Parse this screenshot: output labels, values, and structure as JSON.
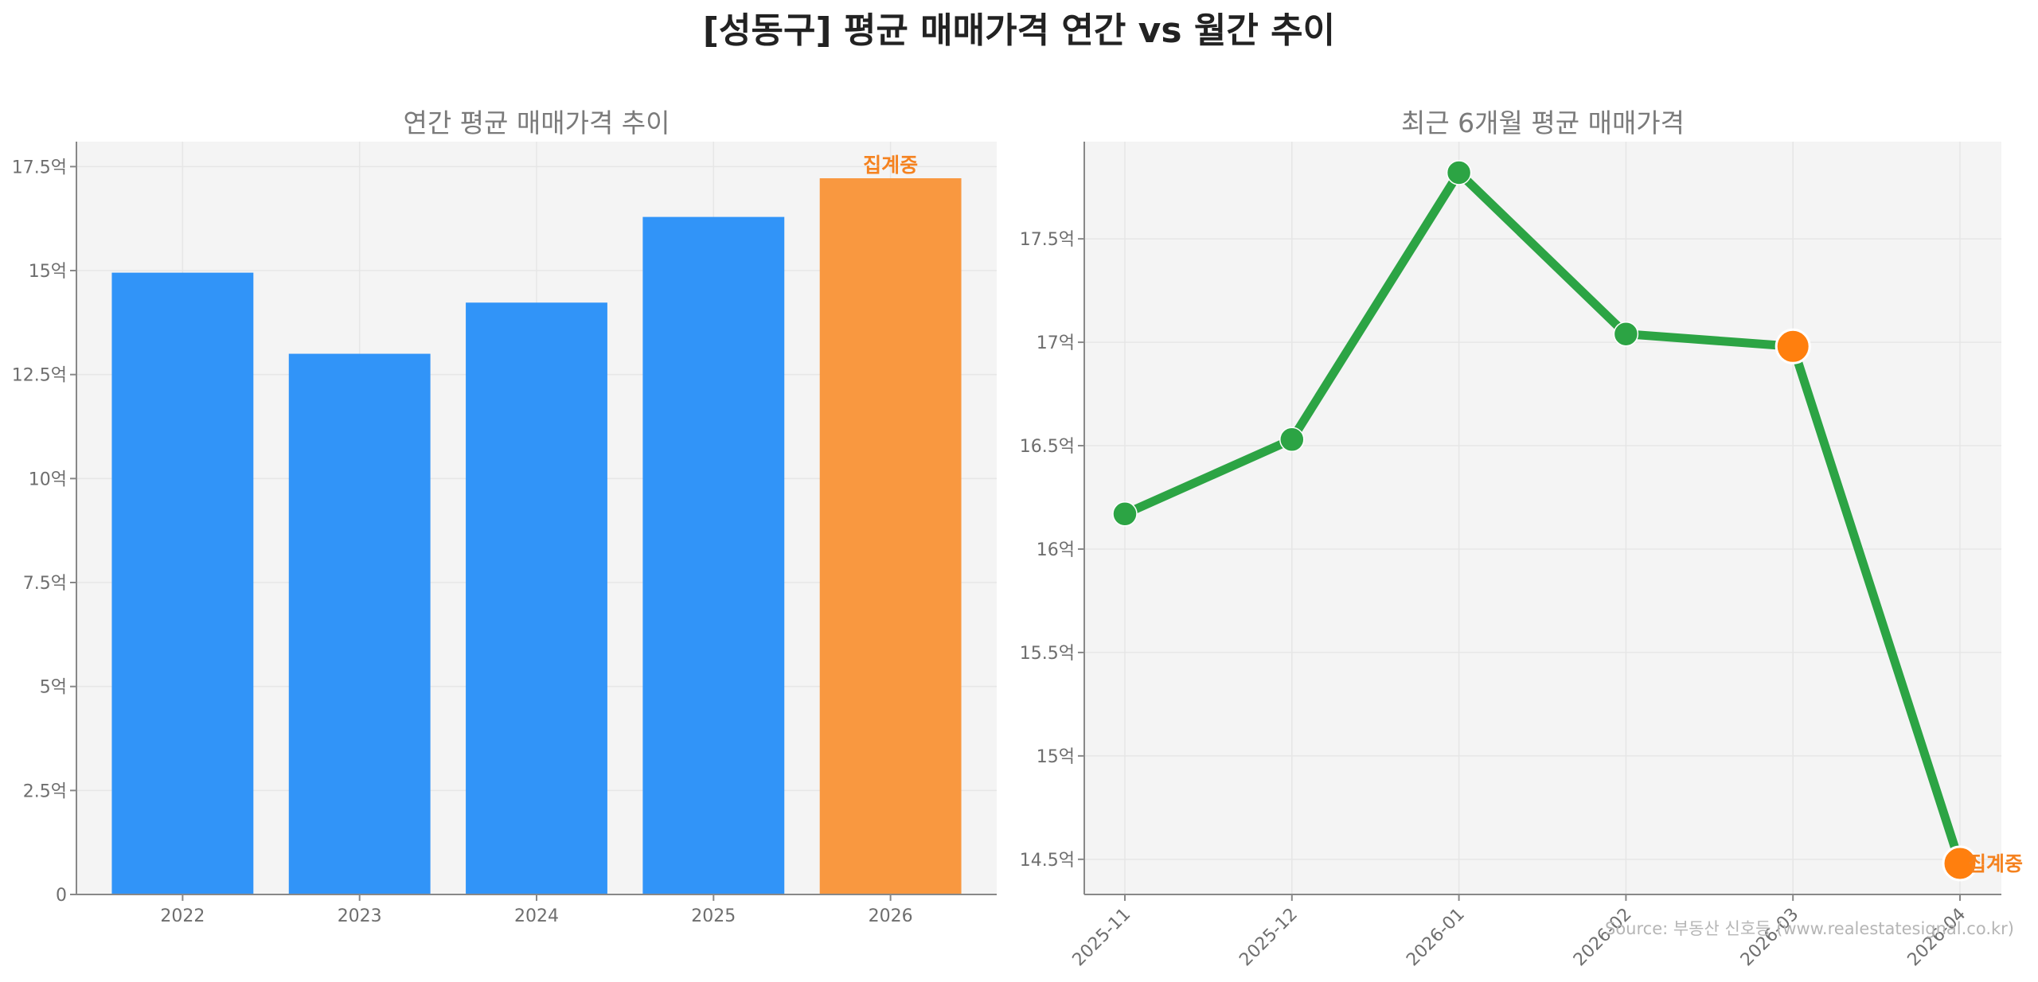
{
  "title": "[성동구] 평균 매매가격 연간 vs 월간 추이",
  "source": "Source: 부동산 신호등 (www.realestatesignal.co.kr)",
  "colors": {
    "bar": "#3194f8",
    "bar_highlight": "#f99840",
    "line": "#2ca444",
    "line_highlight": "#ff7f0e",
    "annotation": "#f5821f"
  },
  "chart_data": [
    {
      "type": "bar",
      "title": "연간 평균 매매가격 추이",
      "categories": [
        "2022",
        "2023",
        "2024",
        "2025",
        "2026"
      ],
      "values": [
        14.95,
        13.0,
        14.23,
        16.29,
        17.22
      ],
      "highlight_index": 4,
      "annotation": "집계중",
      "ylim": [
        0,
        18.1
      ],
      "yticks": [
        0,
        2.5,
        5,
        7.5,
        10,
        12.5,
        15,
        17.5
      ],
      "ytick_labels": [
        "0",
        "2.5억",
        "5억",
        "7.5억",
        "10억",
        "12.5억",
        "15억",
        "17.5억"
      ],
      "grid": true
    },
    {
      "type": "line",
      "title": "최근 6개월 평균 매매가격",
      "x": [
        "2025-11",
        "2025-12",
        "2026-01",
        "2026-02",
        "2026-03",
        "2026-04"
      ],
      "values": [
        16.17,
        16.53,
        17.82,
        17.04,
        16.98,
        14.48
      ],
      "highlight_indices": [
        4,
        5
      ],
      "annotation": "집계중",
      "ylim": [
        14.33,
        17.97
      ],
      "yticks": [
        14.5,
        15,
        15.5,
        16,
        16.5,
        17,
        17.5
      ],
      "ytick_labels": [
        "14.5억",
        "15억",
        "15.5억",
        "16억",
        "16.5억",
        "17억",
        "17.5억"
      ],
      "grid": true
    }
  ]
}
